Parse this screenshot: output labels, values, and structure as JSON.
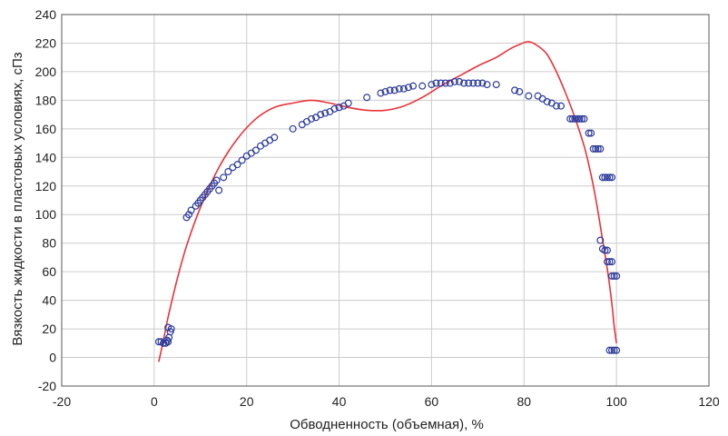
{
  "chart_data": {
    "type": "scatter",
    "xlabel": "Обводненность (объемная), %",
    "ylabel": "Вязкость жидкости в пластовых условиях, сПз",
    "xlim": [
      -20,
      120
    ],
    "ylim": [
      -20,
      240
    ],
    "xticks": [
      "-20",
      "0",
      "20",
      "40",
      "60",
      "80",
      "100",
      "120"
    ],
    "yticks": [
      "-20",
      "0",
      "20",
      "40",
      "60",
      "80",
      "100",
      "120",
      "140",
      "160",
      "180",
      "200",
      "220",
      "240"
    ],
    "grid": true,
    "legend": "none",
    "colors": {
      "points": "#2b3a9a",
      "fit": "#e8333b",
      "grid": "#cccccc",
      "frame": "#555555"
    },
    "series": [
      {
        "kind": "points",
        "x": [
          1,
          1.5,
          2,
          2.5,
          3,
          3.2,
          3.5,
          3.7,
          3,
          2.8,
          7,
          7.5,
          8,
          9,
          9.5,
          10,
          10.5,
          11,
          11.5,
          12,
          12.5,
          13,
          13.5,
          14,
          15,
          16,
          17,
          18,
          19,
          20,
          21,
          22,
          23,
          24,
          25,
          26,
          30,
          32,
          33,
          34,
          35,
          36,
          37,
          38,
          39,
          40,
          41,
          42,
          46,
          49,
          50,
          51,
          52,
          53,
          54,
          55,
          56,
          58,
          60,
          61,
          62,
          63,
          64,
          65,
          66,
          67,
          68,
          69,
          70,
          71,
          72,
          74,
          78,
          79,
          81,
          83,
          84,
          85,
          86,
          87,
          88,
          90,
          90.5,
          91,
          91.5,
          92,
          92.5,
          93,
          94,
          94.5,
          95,
          95.5,
          96,
          96.5,
          97,
          97.5,
          98,
          98.5,
          99,
          96.5,
          97,
          97.5,
          98,
          98,
          98.5,
          99,
          99,
          99.5,
          100,
          98.5,
          99,
          99.5,
          100
        ],
        "y": [
          11,
          11,
          10,
          10,
          11,
          14,
          18,
          20,
          21,
          12,
          98,
          100,
          103,
          106,
          108,
          110,
          112,
          114,
          116,
          118,
          120,
          122,
          124,
          117,
          126,
          130,
          133,
          135,
          138,
          141,
          143,
          145,
          148,
          150,
          152,
          154,
          160,
          163,
          165,
          167,
          168,
          170,
          171,
          172,
          174,
          175,
          176,
          178,
          182,
          185,
          186,
          187,
          187,
          188,
          188,
          189,
          190,
          190,
          191,
          192,
          192,
          192,
          192,
          193,
          193,
          192,
          192,
          192,
          192,
          192,
          191,
          191,
          187,
          186,
          183,
          183,
          181,
          179,
          178,
          176,
          176,
          167,
          167,
          167,
          167,
          167,
          167,
          167,
          157,
          157,
          146,
          146,
          146,
          146,
          126,
          126,
          126,
          126,
          126,
          82,
          76,
          75,
          75,
          67,
          67,
          67,
          57,
          57,
          57,
          5,
          5,
          5,
          5
        ]
      },
      {
        "kind": "line",
        "x": [
          1,
          2,
          3,
          5,
          7,
          10,
          14,
          18,
          22,
          26,
          30,
          34,
          38,
          42,
          46,
          50,
          54,
          58,
          62,
          66,
          70,
          74,
          77,
          79,
          81,
          83,
          85,
          87,
          89,
          91,
          93,
          94,
          95,
          96,
          97,
          98,
          99,
          99.5,
          100
        ],
        "y": [
          -3,
          12,
          28,
          55,
          78,
          105,
          133,
          153,
          167,
          175,
          178,
          180,
          178,
          175,
          173,
          173,
          176,
          182,
          190,
          197,
          204,
          210,
          216,
          219,
          221,
          218,
          212,
          200,
          185,
          168,
          148,
          135,
          120,
          102,
          82,
          62,
          38,
          22,
          10
        ]
      }
    ]
  }
}
